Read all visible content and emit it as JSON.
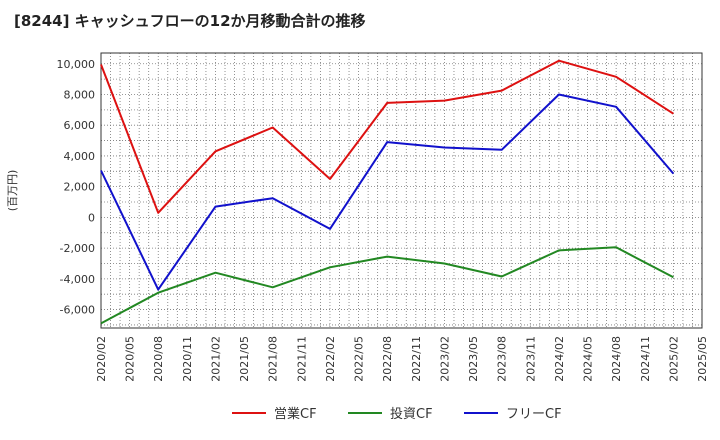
{
  "chart_data": {
    "type": "line",
    "title": "[8244]  キャッシュフローの12か月移動合計の推移",
    "ylabel": "(百万円)",
    "xlabel": "",
    "ylim": [
      -7200,
      10700
    ],
    "yticks": [
      10000,
      8000,
      6000,
      4000,
      2000,
      0,
      -2000,
      -4000,
      -6000
    ],
    "ytick_labels": [
      "10,000",
      "8,000",
      "6,000",
      "4,000",
      "2,000",
      "0",
      "-2,000",
      "-4,000",
      "-6,000"
    ],
    "x_tick_labels": [
      "2020/02",
      "2020/05",
      "2020/08",
      "2020/11",
      "2021/02",
      "2021/05",
      "2021/08",
      "2021/11",
      "2022/02",
      "2022/05",
      "2022/08",
      "2022/11",
      "2023/02",
      "2023/05",
      "2023/08",
      "2023/11",
      "2024/02",
      "2024/05",
      "2024/08",
      "2024/11",
      "2025/02",
      "2025/05"
    ],
    "grid": true,
    "legend_position": "bottom",
    "series": [
      {
        "name": "営業CF",
        "color": "#dd1111",
        "points": [
          [
            0,
            9950
          ],
          [
            2,
            300
          ],
          [
            4,
            4300
          ],
          [
            6,
            5850
          ],
          [
            8,
            2500
          ],
          [
            10,
            7450
          ],
          [
            12,
            7600
          ],
          [
            14,
            8250
          ],
          [
            16,
            10200
          ],
          [
            18,
            9150
          ],
          [
            20,
            6750
          ]
        ]
      },
      {
        "name": "投資CF",
        "color": "#228822",
        "points": [
          [
            0,
            -6900
          ],
          [
            2,
            -4900
          ],
          [
            4,
            -3600
          ],
          [
            6,
            -4550
          ],
          [
            8,
            -3250
          ],
          [
            10,
            -2550
          ],
          [
            12,
            -3000
          ],
          [
            14,
            -3850
          ],
          [
            16,
            -2150
          ],
          [
            18,
            -1950
          ],
          [
            20,
            -3900
          ]
        ]
      },
      {
        "name": "フリーCF",
        "color": "#1111cc",
        "points": [
          [
            0,
            3050
          ],
          [
            2,
            -4700
          ],
          [
            4,
            700
          ],
          [
            6,
            1250
          ],
          [
            8,
            -750
          ],
          [
            10,
            4900
          ],
          [
            12,
            4550
          ],
          [
            14,
            4400
          ],
          [
            16,
            8000
          ],
          [
            18,
            7200
          ],
          [
            20,
            2850
          ]
        ]
      }
    ]
  }
}
